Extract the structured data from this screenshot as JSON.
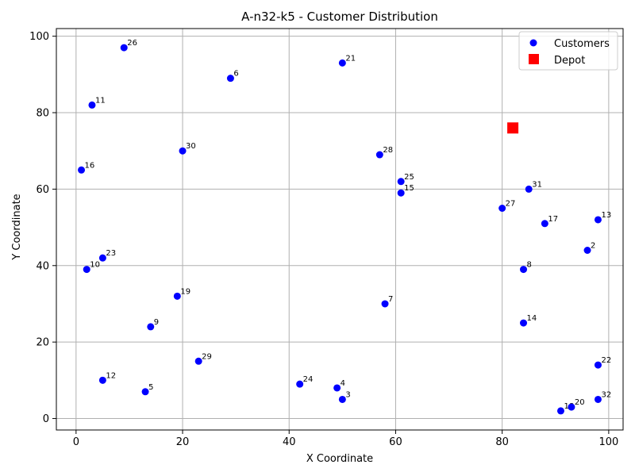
{
  "chart_data": {
    "type": "scatter",
    "title": "A-n32-k5 - Customer Distribution",
    "xlabel": "X Coordinate",
    "ylabel": "Y Coordinate",
    "xlim": [
      -3.7,
      102.7
    ],
    "ylim": [
      -3,
      102
    ],
    "xticks": [
      0,
      20,
      40,
      60,
      80,
      100
    ],
    "yticks": [
      0,
      20,
      40,
      60,
      80,
      100
    ],
    "grid": true,
    "legend": {
      "position": "top-right",
      "entries": [
        "Customers",
        "Depot"
      ]
    },
    "colors": {
      "customers": "#0000ff",
      "depot": "#ff0000",
      "grid": "#b0b0b0"
    },
    "series": [
      {
        "name": "Customers",
        "marker": "circle",
        "points": [
          {
            "label": "2",
            "x": 96,
            "y": 44
          },
          {
            "label": "3",
            "x": 50,
            "y": 5
          },
          {
            "label": "4",
            "x": 49,
            "y": 8
          },
          {
            "label": "5",
            "x": 13,
            "y": 7
          },
          {
            "label": "6",
            "x": 29,
            "y": 89
          },
          {
            "label": "7",
            "x": 58,
            "y": 30
          },
          {
            "label": "8",
            "x": 84,
            "y": 39
          },
          {
            "label": "9",
            "x": 14,
            "y": 24
          },
          {
            "label": "10",
            "x": 2,
            "y": 39
          },
          {
            "label": "11",
            "x": 3,
            "y": 82
          },
          {
            "label": "12",
            "x": 5,
            "y": 10
          },
          {
            "label": "13",
            "x": 98,
            "y": 52
          },
          {
            "label": "14",
            "x": 84,
            "y": 25
          },
          {
            "label": "15",
            "x": 61,
            "y": 59
          },
          {
            "label": "16",
            "x": 1,
            "y": 65
          },
          {
            "label": "17",
            "x": 88,
            "y": 51
          },
          {
            "label": "18",
            "x": 91,
            "y": 2
          },
          {
            "label": "19",
            "x": 19,
            "y": 32
          },
          {
            "label": "20",
            "x": 93,
            "y": 3
          },
          {
            "label": "21",
            "x": 50,
            "y": 93
          },
          {
            "label": "22",
            "x": 98,
            "y": 14
          },
          {
            "label": "23",
            "x": 5,
            "y": 42
          },
          {
            "label": "24",
            "x": 42,
            "y": 9
          },
          {
            "label": "25",
            "x": 61,
            "y": 62
          },
          {
            "label": "26",
            "x": 9,
            "y": 97
          },
          {
            "label": "27",
            "x": 80,
            "y": 55
          },
          {
            "label": "28",
            "x": 57,
            "y": 69
          },
          {
            "label": "29",
            "x": 23,
            "y": 15
          },
          {
            "label": "30",
            "x": 20,
            "y": 70
          },
          {
            "label": "31",
            "x": 85,
            "y": 60
          },
          {
            "label": "32",
            "x": 98,
            "y": 5
          }
        ]
      },
      {
        "name": "Depot",
        "marker": "square",
        "points": [
          {
            "x": 82,
            "y": 76
          }
        ]
      }
    ]
  }
}
